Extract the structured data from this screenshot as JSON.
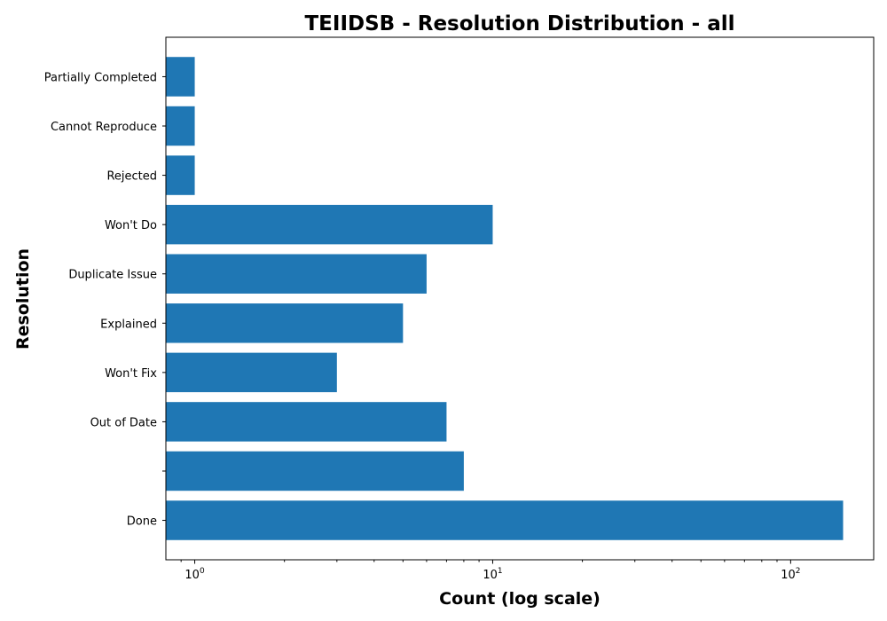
{
  "chart_data": {
    "type": "bar",
    "orientation": "horizontal",
    "title": "TEIIDSB - Resolution Distribution - all",
    "xlabel": "Count (log scale)",
    "ylabel": "Resolution",
    "x_scale": "log",
    "xlim": [
      0.8,
      190
    ],
    "x_major_ticks": [
      {
        "value": 1,
        "base": "10",
        "exp": "0"
      },
      {
        "value": 10,
        "base": "10",
        "exp": "1"
      },
      {
        "value": 100,
        "base": "10",
        "exp": "2"
      }
    ],
    "categories": [
      "Done",
      "",
      "Out of Date",
      "Won't Fix",
      "Explained",
      "Duplicate Issue",
      "Won't Do",
      "Rejected",
      "Cannot Reproduce",
      "Partially Completed"
    ],
    "values": [
      150,
      8,
      7,
      3,
      5,
      6,
      10,
      1,
      1,
      1
    ],
    "bar_color": "#1f77b4",
    "grid": false,
    "legend": "none"
  }
}
